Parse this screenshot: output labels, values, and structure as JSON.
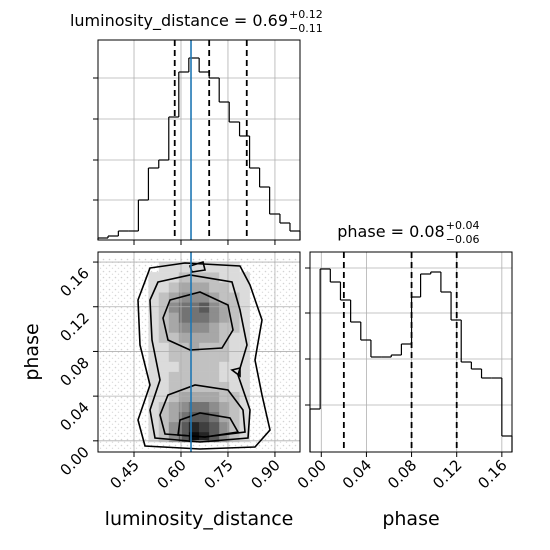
{
  "chart_data": [
    {
      "type": "histogram",
      "title": "luminosity_distance = 0.69",
      "title_upper": "+0.12",
      "title_lower": "−0.11",
      "bins": [
        0.335,
        0.367,
        0.4,
        0.432,
        0.464,
        0.496,
        0.529,
        0.561,
        0.593,
        0.625,
        0.658,
        0.69,
        0.722,
        0.754,
        0.787,
        0.819,
        0.851,
        0.883,
        0.916,
        0.948,
        0.98
      ],
      "values": [
        2,
        4,
        9,
        9,
        40,
        72,
        80,
        123,
        168,
        182,
        168,
        162,
        138,
        118,
        104,
        72,
        53,
        26,
        17,
        9
      ],
      "xlim": [
        0.335,
        0.98
      ],
      "ylim": [
        0,
        200
      ],
      "yticks": [
        40,
        80,
        121,
        162
      ],
      "quantiles": [
        0.58,
        0.69,
        0.81
      ],
      "truth": 0.632,
      "color": "#000000",
      "truth_color": "#1f77b4",
      "grid": true
    },
    {
      "type": "density2d",
      "x_label": "luminosity_distance",
      "y_label": "phase",
      "xlim": [
        0.335,
        0.98
      ],
      "ylim": [
        -0.01,
        0.169
      ],
      "xticks": [
        0.45,
        {
          "value": 0.6,
          "label": "0.60"
        },
        0.75,
        {
          "value": 0.9,
          "label": "0.90"
        }
      ],
      "yticks": [
        {
          "value": 0,
          "label": "0.00"
        },
        0.04,
        0.08,
        0.12,
        0.16
      ],
      "density": [
        [
          0,
          0,
          0,
          0,
          0,
          0,
          0,
          0,
          0,
          0,
          0,
          0,
          0,
          0,
          0,
          0,
          0,
          0,
          0,
          0
        ],
        [
          0,
          0,
          0,
          0,
          0,
          1,
          2,
          4,
          6,
          9,
          8,
          6,
          4,
          2,
          1,
          0,
          0,
          0,
          0,
          0
        ],
        [
          0,
          0,
          0,
          0,
          0,
          1,
          2,
          4,
          6,
          8,
          7,
          6,
          4,
          2,
          1,
          0,
          0,
          0,
          0,
          0
        ],
        [
          0,
          0,
          0,
          0,
          0,
          1,
          2,
          3,
          5,
          6,
          6,
          5,
          3,
          2,
          1,
          0,
          0,
          0,
          0,
          0
        ],
        [
          0,
          0,
          0,
          0,
          0,
          1,
          2,
          3,
          4,
          5,
          5,
          4,
          3,
          2,
          1,
          0,
          0,
          0,
          0,
          0
        ],
        [
          0,
          0,
          0,
          0,
          0,
          1,
          1,
          2,
          3,
          3,
          3,
          3,
          2,
          2,
          1,
          0,
          0,
          0,
          0,
          0
        ],
        [
          0,
          0,
          0,
          0,
          0,
          1,
          1,
          2,
          2,
          2,
          2,
          2,
          2,
          1,
          1,
          0,
          0,
          0,
          0,
          0
        ],
        [
          0,
          0,
          0,
          0,
          0,
          1,
          1,
          2,
          2,
          2,
          2,
          2,
          1,
          1,
          1,
          0,
          0,
          0,
          0,
          0
        ],
        [
          0,
          0,
          0,
          0,
          0,
          1,
          1,
          1,
          2,
          2,
          2,
          2,
          1,
          1,
          1,
          0,
          0,
          0,
          0,
          0
        ],
        [
          0,
          0,
          0,
          0,
          0,
          1,
          1,
          2,
          2,
          2,
          2,
          2,
          2,
          1,
          1,
          0,
          0,
          0,
          0,
          0
        ],
        [
          0,
          0,
          0,
          0,
          0,
          1,
          1,
          2,
          2,
          3,
          2,
          2,
          2,
          1,
          1,
          0,
          0,
          0,
          0,
          0
        ],
        [
          0,
          0,
          0,
          0,
          0,
          1,
          2,
          2,
          3,
          3,
          3,
          3,
          2,
          1,
          1,
          0,
          0,
          0,
          0,
          0
        ],
        [
          0,
          0,
          0,
          0,
          0,
          1,
          2,
          3,
          4,
          4,
          4,
          3,
          2,
          2,
          1,
          0,
          0,
          0,
          0,
          0
        ],
        [
          0,
          0,
          0,
          0,
          0,
          1,
          2,
          3,
          5,
          5,
          5,
          4,
          3,
          2,
          1,
          0,
          0,
          0,
          0,
          0
        ],
        [
          0,
          0,
          0,
          0,
          0,
          1,
          2,
          4,
          5,
          5,
          6,
          4,
          3,
          2,
          1,
          0,
          0,
          0,
          0,
          0
        ],
        [
          0,
          0,
          0,
          0,
          0,
          1,
          2,
          3,
          4,
          4,
          4,
          3,
          2,
          2,
          1,
          0,
          0,
          0,
          0,
          0
        ],
        [
          0,
          0,
          0,
          0,
          0,
          1,
          1,
          2,
          3,
          3,
          3,
          2,
          2,
          1,
          1,
          0,
          0,
          0,
          0,
          0
        ],
        [
          0,
          0,
          0,
          0,
          0,
          1,
          1,
          1,
          2,
          2,
          2,
          2,
          1,
          1,
          1,
          0,
          0,
          0,
          0,
          0
        ],
        [
          0,
          0,
          0,
          0,
          0,
          0,
          1,
          1,
          1,
          1,
          1,
          1,
          1,
          1,
          0,
          0,
          0,
          0,
          0,
          0
        ],
        [
          0,
          0,
          0,
          0,
          0,
          0,
          0,
          0,
          0,
          0,
          0,
          0,
          0,
          0,
          0,
          0,
          0,
          0,
          0,
          0
        ]
      ],
      "truth_x": 0.632,
      "truth_color": "#1f77b4",
      "grid": true
    },
    {
      "type": "histogram",
      "title": "phase = 0.08",
      "title_upper": "+0.04",
      "title_lower": "−0.06",
      "x_label": "phase",
      "bins": [
        -0.01,
        -0.001,
        0.008,
        0.017,
        0.026,
        0.035,
        0.044,
        0.053,
        0.062,
        0.071,
        0.08,
        0.088,
        0.097,
        0.106,
        0.115,
        0.124,
        0.133,
        0.142,
        0.151,
        0.16,
        0.169
      ],
      "values": [
        43,
        183,
        170,
        152,
        130,
        112,
        95,
        95,
        97,
        108,
        155,
        178,
        180,
        160,
        132,
        90,
        83,
        74,
        74,
        16
      ],
      "xlim": [
        -0.01,
        0.169
      ],
      "ylim": [
        0,
        200
      ],
      "yticks": [
        47,
        93,
        139,
        184
      ],
      "xticks": [
        {
          "value": 0,
          "label": "0.00"
        },
        0.04,
        0.08,
        0.12,
        0.16
      ],
      "quantiles": [
        0.02,
        0.08,
        0.12
      ],
      "color": "#000000",
      "grid": true
    }
  ]
}
